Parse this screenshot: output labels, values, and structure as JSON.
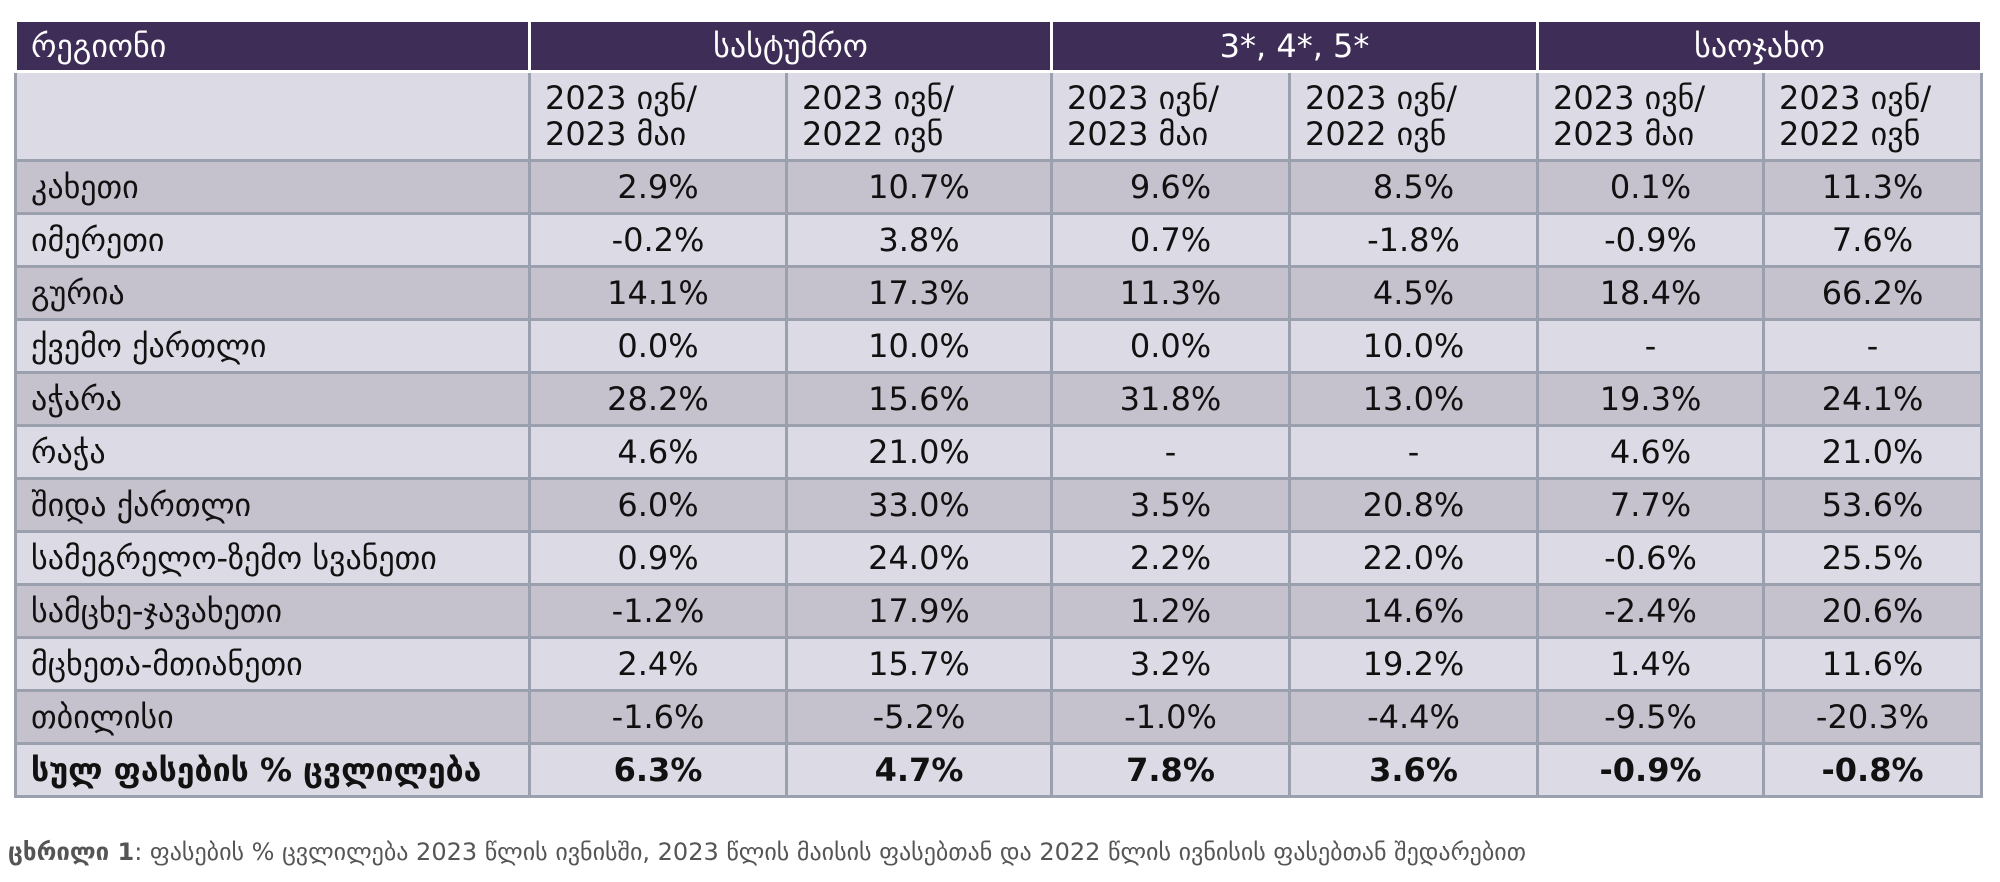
{
  "table": {
    "header": {
      "region": "რეგიონი",
      "groups": [
        "სასტუმრო",
        "3*, 4*, 5*",
        "საოჯახო"
      ]
    },
    "subheaders": [
      [
        "2023 ივნ/",
        "2023 მაი"
      ],
      [
        "2023 ივნ/",
        "2022 ივნ"
      ],
      [
        "2023 ივნ/",
        "2023 მაი"
      ],
      [
        "2023 ივნ/",
        "2022 ივნ"
      ],
      [
        "2023 ივნ/",
        "2023 მაი"
      ],
      [
        "2023 ივნ/",
        "2022 ივნ"
      ]
    ],
    "rows": [
      {
        "region": "კახეთი",
        "values": [
          "2.9%",
          "10.7%",
          "9.6%",
          "8.5%",
          "0.1%",
          "11.3%"
        ]
      },
      {
        "region": "იმერეთი",
        "values": [
          "-0.2%",
          "3.8%",
          "0.7%",
          "-1.8%",
          "-0.9%",
          "7.6%"
        ]
      },
      {
        "region": "გურია",
        "values": [
          "14.1%",
          "17.3%",
          "11.3%",
          "4.5%",
          "18.4%",
          "66.2%"
        ]
      },
      {
        "region": "ქვემო ქართლი",
        "values": [
          "0.0%",
          "10.0%",
          "0.0%",
          "10.0%",
          "-",
          "-"
        ]
      },
      {
        "region": "აჭარა",
        "values": [
          "28.2%",
          "15.6%",
          "31.8%",
          "13.0%",
          "19.3%",
          "24.1%"
        ]
      },
      {
        "region": "რაჭა",
        "values": [
          "4.6%",
          "21.0%",
          "-",
          "-",
          "4.6%",
          "21.0%"
        ]
      },
      {
        "region": "შიდა ქართლი",
        "values": [
          "6.0%",
          "33.0%",
          "3.5%",
          "20.8%",
          "7.7%",
          "53.6%"
        ]
      },
      {
        "region": "სამეგრელო-ზემო სვანეთი",
        "values": [
          "0.9%",
          "24.0%",
          "2.2%",
          "22.0%",
          "-0.6%",
          "25.5%"
        ]
      },
      {
        "region": "სამცხე-ჯავახეთი",
        "values": [
          "-1.2%",
          "17.9%",
          "1.2%",
          "14.6%",
          "-2.4%",
          "20.6%"
        ]
      },
      {
        "region": "მცხეთა-მთიანეთი",
        "values": [
          "2.4%",
          "15.7%",
          "3.2%",
          "19.2%",
          "1.4%",
          "11.6%"
        ]
      },
      {
        "region": "თბილისი",
        "values": [
          "-1.6%",
          "-5.2%",
          "-1.0%",
          "-4.4%",
          "-9.5%",
          "-20.3%"
        ]
      }
    ],
    "total": {
      "region": "სულ ფასების % ცვლილება",
      "values": [
        "6.3%",
        "4.7%",
        "7.8%",
        "3.6%",
        "-0.9%",
        "-0.8%"
      ]
    }
  },
  "caption": {
    "label": "ცხრილი 1",
    "text": ": ფასების % ცვლილება 2023 წლის ივნისში, 2023 წლის მაისის ფასებთან და 2022 წლის ივნისის ფასებთან შედარებით"
  },
  "colors": {
    "header_bg": "#3d2d57",
    "row_dark": "#c5c1cd",
    "row_light": "#dcdbe5",
    "border": "#9aa0ad"
  }
}
